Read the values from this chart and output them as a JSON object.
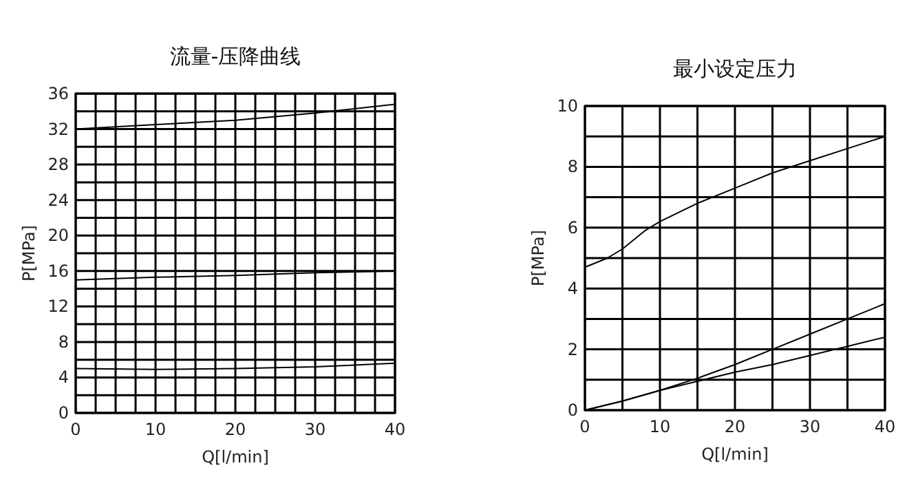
{
  "chart_data": [
    {
      "type": "line",
      "title": "流量-压降曲线",
      "xlabel": "Q[l/min]",
      "ylabel": "P[MPa]",
      "x": [
        0,
        10,
        20,
        30,
        40
      ],
      "xlim": [
        0,
        40
      ],
      "ylim": [
        0,
        36
      ],
      "xticks": [
        0,
        {
          "value": 2.5,
          "label": null
        },
        {
          "value": 5,
          "label": null
        },
        {
          "value": 7.5,
          "label": null
        },
        10,
        {
          "value": 12.5,
          "label": null
        },
        {
          "value": 15,
          "label": null
        },
        {
          "value": 17.5,
          "label": null
        },
        20,
        {
          "value": 22.5,
          "label": null
        },
        {
          "value": 25,
          "label": null
        },
        {
          "value": 27.5,
          "label": null
        },
        30,
        {
          "value": 32.5,
          "label": null
        },
        {
          "value": 35,
          "label": null
        },
        {
          "value": 37.5,
          "label": null
        },
        40
      ],
      "yticks": [
        0,
        {
          "value": 2,
          "label": null
        },
        4,
        {
          "value": 6,
          "label": null
        },
        8,
        {
          "value": 10,
          "label": null
        },
        12,
        {
          "value": 14,
          "label": null
        },
        16,
        {
          "value": 18,
          "label": null
        },
        20,
        {
          "value": 22,
          "label": null
        },
        24,
        {
          "value": 26,
          "label": null
        },
        28,
        {
          "value": 30,
          "label": null
        },
        32,
        {
          "value": 34,
          "label": null
        },
        36
      ],
      "grid": true,
      "series": [
        {
          "color": "#000000",
          "values": [
            32,
            32.5,
            33,
            33.8,
            34.8
          ]
        },
        {
          "color": "#000000",
          "values": [
            15,
            15.3,
            15.5,
            15.8,
            16
          ]
        },
        {
          "color": "#000000",
          "values": [
            5,
            4.9,
            5,
            5.2,
            5.6
          ]
        }
      ]
    },
    {
      "type": "line",
      "title": "最小设定压力",
      "xlabel": "Q[l/min]",
      "ylabel": "P[MPa]",
      "xlim": [
        0,
        40
      ],
      "ylim": [
        0,
        10
      ],
      "xticks": [
        0,
        {
          "value": 5,
          "label": null
        },
        10,
        {
          "value": 15,
          "label": null
        },
        20,
        {
          "value": 25,
          "label": null
        },
        30,
        {
          "value": 35,
          "label": null
        },
        40
      ],
      "yticks": [
        0,
        {
          "value": 1,
          "label": null
        },
        2,
        {
          "value": 3,
          "label": null
        },
        4,
        {
          "value": 5,
          "label": null
        },
        6,
        {
          "value": 7,
          "label": null
        },
        8,
        {
          "value": 9,
          "label": null
        },
        10
      ],
      "grid": true,
      "series": [
        {
          "color": "#000000",
          "x": [
            0,
            3,
            5,
            8,
            10,
            15,
            20,
            25,
            30,
            35,
            40
          ],
          "values": [
            4.7,
            5,
            5.3,
            5.9,
            6.2,
            6.8,
            7.3,
            7.8,
            8.2,
            8.6,
            9
          ]
        },
        {
          "color": "#000000",
          "x": [
            0,
            5,
            10,
            15,
            20,
            25,
            30,
            35,
            40
          ],
          "values": [
            0,
            0.3,
            0.65,
            1.05,
            1.5,
            2,
            2.5,
            3,
            3.5
          ]
        },
        {
          "color": "#000000",
          "x": [
            0,
            5,
            10,
            15,
            20,
            25,
            30,
            35,
            40
          ],
          "values": [
            0,
            0.3,
            0.65,
            0.95,
            1.25,
            1.5,
            1.8,
            2.1,
            2.4
          ]
        }
      ]
    }
  ]
}
